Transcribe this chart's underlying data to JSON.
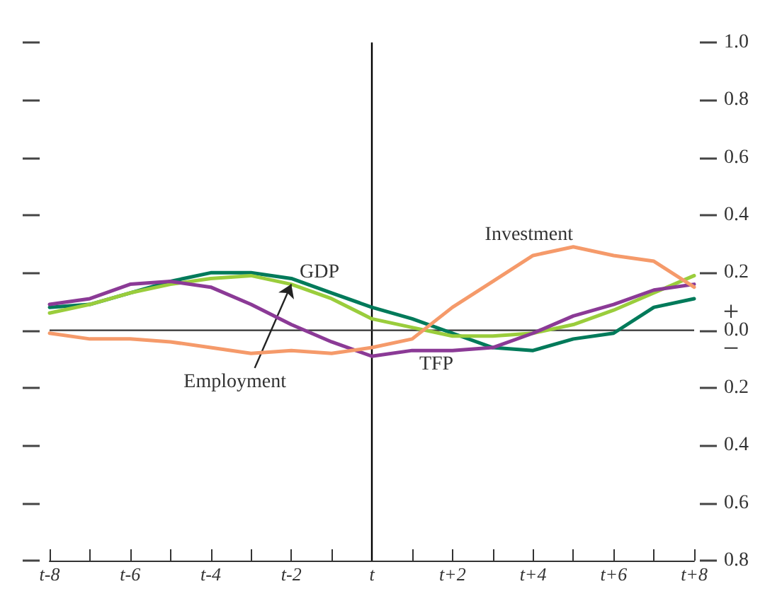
{
  "chart_data": {
    "type": "line",
    "categories": [
      "t-8",
      null,
      "t-6",
      null,
      "t-4",
      null,
      "t-2",
      null,
      "t",
      null,
      "t+2",
      null,
      "t+4",
      null,
      "t+6",
      null,
      "t+8"
    ],
    "series": [
      {
        "color": "#007a5a",
        "values": [
          0.08,
          0.09,
          0.13,
          0.17,
          0.2,
          0.2,
          0.18,
          0.13,
          0.08,
          0.04,
          -0.01,
          -0.06,
          -0.07,
          -0.03,
          -0.01,
          0.08,
          0.11
        ]
      },
      {
        "color": "#9acd3c",
        "values": [
          0.06,
          0.09,
          0.13,
          0.16,
          0.18,
          0.19,
          0.16,
          0.11,
          0.04,
          0.01,
          -0.02,
          -0.02,
          -0.01,
          0.02,
          0.07,
          0.13,
          0.19
        ]
      },
      {
        "color": "#8b3a96",
        "values": [
          0.09,
          0.11,
          0.16,
          0.17,
          0.15,
          0.09,
          0.02,
          -0.04,
          -0.09,
          -0.07,
          -0.07,
          -0.06,
          -0.01,
          0.05,
          0.09,
          0.14,
          0.16
        ]
      },
      {
        "color": "#f59a6a",
        "values": [
          -0.01,
          -0.03,
          -0.03,
          -0.04,
          -0.06,
          -0.08,
          -0.07,
          -0.08,
          -0.06,
          -0.03,
          0.08,
          0.17,
          0.26,
          0.29,
          0.26,
          0.24,
          0.15
        ]
      }
    ],
    "ylim": [
      -0.8,
      1.0
    ],
    "yticks": [
      {
        "value": -0.8,
        "label": "0.8"
      },
      {
        "value": -0.6,
        "label": "0.6"
      },
      {
        "value": -0.4,
        "label": "0.4"
      },
      {
        "value": -0.2,
        "label": "0.2"
      },
      {
        "value": 0,
        "label": "0.0"
      },
      {
        "value": 0.2,
        "label": "0.2"
      },
      {
        "value": 0.4,
        "label": "0.4"
      },
      {
        "value": 0.6,
        "label": "0.6"
      },
      {
        "value": 0.8,
        "label": "0.8"
      },
      {
        "value": 1.0,
        "label": "1.0"
      }
    ],
    "ref_lines": [
      {
        "axis": "x",
        "value": "t",
        "color": "#000000"
      },
      {
        "axis": "y",
        "value": 0,
        "color": "#333333"
      }
    ],
    "annotations": [
      "GDP",
      {
        "text": "Employment",
        "x": "t-2",
        "y": 0.16
      },
      "TFP",
      "Investment",
      "+",
      "−"
    ],
    "grid": false,
    "marker": "none",
    "line_style": "solid"
  }
}
